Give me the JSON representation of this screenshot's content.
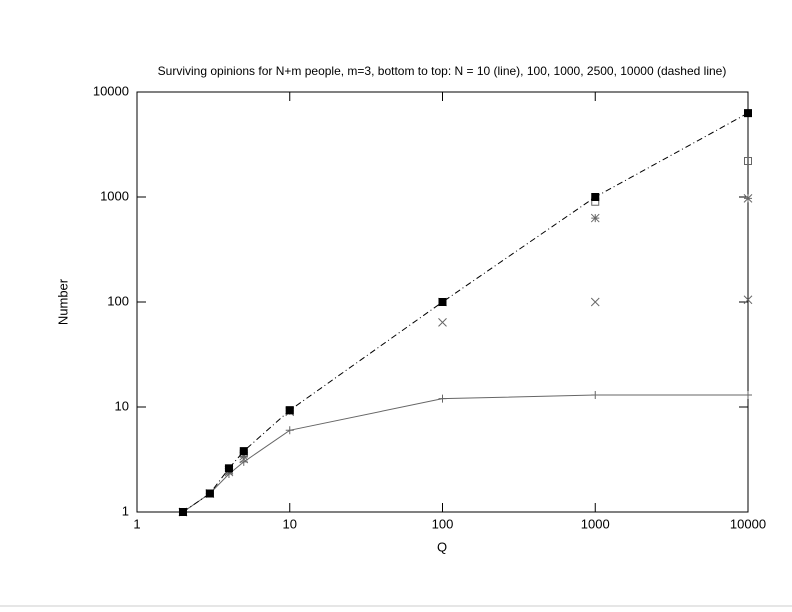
{
  "chart_data": {
    "type": "line",
    "title": "Surviving opinions for N+m people, m=3, bottom to top: N = 10 (line), 100, 1000, 2500, 10000 (dashed line)",
    "x_label": "Q",
    "y_label": "Number",
    "log_x": true,
    "log_y": true,
    "xlim": [
      1,
      10000
    ],
    "ylim": [
      1,
      10000
    ],
    "xticks": [
      1,
      10,
      100,
      1000,
      10000
    ],
    "yticks": [
      1,
      10,
      100,
      1000,
      10000
    ],
    "x": [
      2,
      3,
      4,
      5,
      10,
      100,
      1000,
      10000
    ],
    "series": [
      {
        "marker": "plus",
        "line": "solid",
        "color": "#666666",
        "values": [
          1,
          1.5,
          2.3,
          3,
          6,
          12,
          13,
          13
        ]
      },
      {
        "marker": "cross",
        "line": "none",
        "color": "#666666",
        "values": [
          1,
          1.5,
          2.4,
          3.2,
          9,
          64,
          100,
          105
        ]
      },
      {
        "marker": "star",
        "line": "none",
        "color": "#666666",
        "values": [
          1,
          1.5,
          2.5,
          3.4,
          9.2,
          100,
          630,
          970
        ]
      },
      {
        "marker": "square-open",
        "line": "none",
        "color": "#666666",
        "values": [
          1,
          1.5,
          2.6,
          3.6,
          9.3,
          100,
          900,
          2200
        ]
      },
      {
        "marker": "square-filled",
        "line": "dashdot",
        "color": "#000000",
        "values": [
          1,
          1.5,
          2.6,
          3.8,
          9.3,
          100,
          1000,
          6300
        ]
      }
    ]
  }
}
